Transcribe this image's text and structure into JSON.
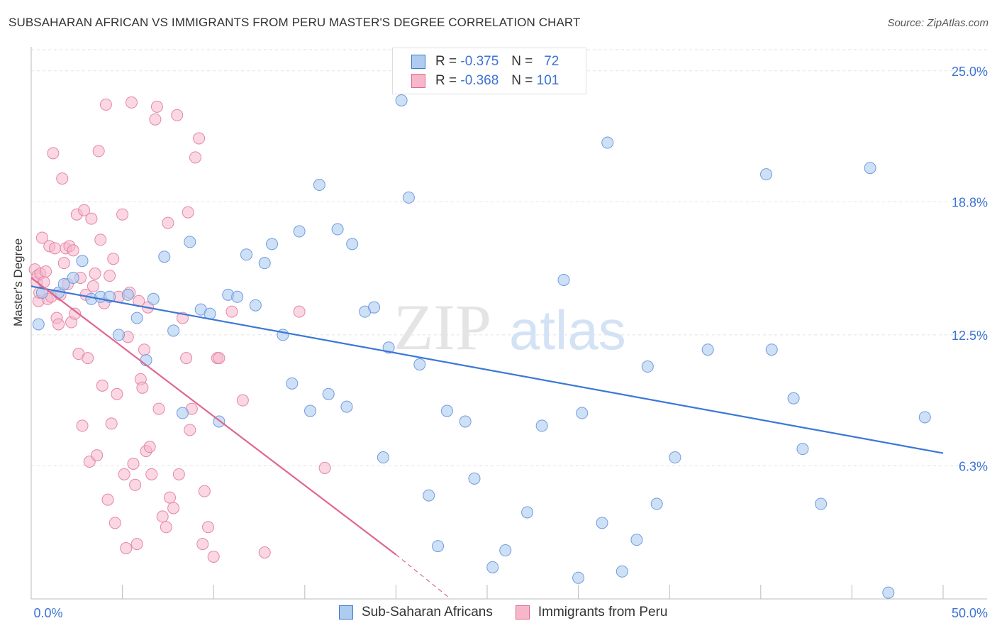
{
  "title": "SUBSAHARAN AFRICAN VS IMMIGRANTS FROM PERU MASTER'S DEGREE CORRELATION CHART",
  "source": "Source: ZipAtlas.com",
  "watermark": {
    "zip": "ZIP",
    "atlas": "atlas"
  },
  "legend_top": [
    {
      "r_label": "R =",
      "r_value": "-0.375",
      "n_label": "N =",
      "n_value": "72"
    },
    {
      "r_label": "R =",
      "r_value": "-0.368",
      "n_label": "N =",
      "n_value": "101"
    }
  ],
  "legend_bottom": [
    "Sub-Saharan Africans",
    "Immigrants from Peru"
  ],
  "chart_data": {
    "type": "scatter",
    "title": "SUBSAHARAN AFRICAN VS IMMIGRANTS FROM PERU MASTER'S DEGREE CORRELATION CHART",
    "xlabel": "",
    "ylabel": "Master's Degree",
    "xlim": [
      0,
      50
    ],
    "ylim": [
      0,
      26
    ],
    "x_tick_labels": [
      "0.0%",
      "50.0%"
    ],
    "y_ticks": [
      6.3,
      12.5,
      18.8,
      25.0
    ],
    "y_tick_labels": [
      "6.3%",
      "12.5%",
      "18.8%",
      "25.0%"
    ],
    "grid": true,
    "colors": {
      "blue": "#3a78d6",
      "blue_fill": "#aecbf0",
      "pink": "#e0668f",
      "pink_fill": "#f6b7cb",
      "tick_text": "#3d73d4"
    },
    "series": [
      {
        "name": "Sub-Saharan Africans",
        "color": "#aecbf0",
        "points": [
          [
            0.4,
            13.0
          ],
          [
            0.6,
            14.5
          ],
          [
            1.5,
            14.5
          ],
          [
            1.8,
            14.9
          ],
          [
            2.3,
            15.2
          ],
          [
            2.8,
            16.0
          ],
          [
            3.3,
            14.2
          ],
          [
            3.8,
            14.3
          ],
          [
            4.3,
            14.3
          ],
          [
            4.8,
            12.5
          ],
          [
            5.3,
            14.4
          ],
          [
            5.8,
            13.3
          ],
          [
            6.3,
            11.3
          ],
          [
            6.7,
            14.2
          ],
          [
            7.3,
            16.2
          ],
          [
            7.8,
            12.7
          ],
          [
            8.3,
            8.8
          ],
          [
            8.7,
            16.9
          ],
          [
            9.3,
            13.7
          ],
          [
            9.8,
            13.5
          ],
          [
            10.3,
            8.4
          ],
          [
            10.8,
            14.4
          ],
          [
            11.3,
            14.3
          ],
          [
            11.8,
            16.3
          ],
          [
            12.3,
            13.9
          ],
          [
            12.8,
            15.9
          ],
          [
            13.2,
            16.8
          ],
          [
            13.8,
            12.5
          ],
          [
            14.3,
            10.2
          ],
          [
            14.7,
            17.4
          ],
          [
            15.3,
            8.9
          ],
          [
            15.8,
            19.6
          ],
          [
            16.3,
            9.7
          ],
          [
            16.8,
            17.5
          ],
          [
            17.3,
            9.1
          ],
          [
            17.6,
            16.8
          ],
          [
            18.3,
            13.6
          ],
          [
            18.8,
            13.8
          ],
          [
            19.3,
            6.7
          ],
          [
            19.6,
            11.9
          ],
          [
            20.3,
            23.6
          ],
          [
            20.7,
            19.0
          ],
          [
            21.3,
            11.1
          ],
          [
            21.8,
            4.9
          ],
          [
            22.3,
            2.5
          ],
          [
            22.8,
            8.9
          ],
          [
            23.8,
            8.4
          ],
          [
            24.3,
            5.7
          ],
          [
            25.3,
            1.5
          ],
          [
            26.0,
            2.3
          ],
          [
            27.2,
            4.1
          ],
          [
            28.0,
            8.2
          ],
          [
            29.2,
            15.1
          ],
          [
            30.0,
            1.0
          ],
          [
            30.2,
            8.8
          ],
          [
            31.3,
            3.6
          ],
          [
            31.6,
            21.6
          ],
          [
            32.4,
            1.3
          ],
          [
            33.2,
            2.8
          ],
          [
            33.8,
            11.0
          ],
          [
            34.3,
            4.5
          ],
          [
            35.3,
            6.7
          ],
          [
            37.1,
            11.8
          ],
          [
            40.3,
            20.1
          ],
          [
            40.6,
            11.8
          ],
          [
            41.8,
            9.5
          ],
          [
            42.3,
            7.1
          ],
          [
            43.3,
            4.5
          ],
          [
            46.0,
            20.4
          ],
          [
            47.0,
            0.3
          ],
          [
            49.0,
            8.6
          ]
        ],
        "point_sizes": {
          "0.4,13.0": "large"
        }
      },
      {
        "name": "Immigrants from Peru",
        "color": "#f6b7cb",
        "points": [
          [
            0.2,
            15.6
          ],
          [
            0.3,
            15.0
          ],
          [
            0.35,
            15.3
          ],
          [
            0.4,
            14.1
          ],
          [
            0.45,
            14.5
          ],
          [
            0.5,
            15.4
          ],
          [
            0.6,
            17.1
          ],
          [
            0.7,
            15.0
          ],
          [
            0.8,
            15.5
          ],
          [
            0.9,
            14.2
          ],
          [
            1.0,
            16.7
          ],
          [
            1.1,
            14.3
          ],
          [
            1.2,
            21.1
          ],
          [
            1.3,
            16.6
          ],
          [
            1.4,
            13.3
          ],
          [
            1.5,
            13.0
          ],
          [
            1.6,
            14.4
          ],
          [
            1.7,
            19.9
          ],
          [
            1.8,
            15.9
          ],
          [
            1.9,
            16.6
          ],
          [
            2.0,
            14.9
          ],
          [
            2.1,
            16.7
          ],
          [
            2.2,
            13.1
          ],
          [
            2.3,
            16.5
          ],
          [
            2.4,
            13.5
          ],
          [
            2.5,
            18.2
          ],
          [
            2.6,
            11.6
          ],
          [
            2.7,
            15.2
          ],
          [
            2.8,
            8.2
          ],
          [
            2.9,
            18.4
          ],
          [
            3.0,
            14.4
          ],
          [
            3.1,
            11.4
          ],
          [
            3.2,
            6.5
          ],
          [
            3.3,
            18.0
          ],
          [
            3.4,
            14.8
          ],
          [
            3.5,
            15.4
          ],
          [
            3.6,
            6.8
          ],
          [
            3.7,
            21.2
          ],
          [
            3.8,
            17.0
          ],
          [
            3.9,
            10.1
          ],
          [
            4.0,
            14.0
          ],
          [
            4.1,
            23.4
          ],
          [
            4.2,
            4.7
          ],
          [
            4.3,
            15.3
          ],
          [
            4.4,
            8.3
          ],
          [
            4.5,
            16.1
          ],
          [
            4.6,
            3.6
          ],
          [
            4.7,
            9.7
          ],
          [
            4.8,
            14.3
          ],
          [
            5.0,
            18.2
          ],
          [
            5.1,
            5.9
          ],
          [
            5.2,
            2.4
          ],
          [
            5.3,
            12.4
          ],
          [
            5.4,
            14.5
          ],
          [
            5.5,
            23.5
          ],
          [
            5.6,
            6.4
          ],
          [
            5.7,
            5.4
          ],
          [
            5.8,
            2.6
          ],
          [
            5.9,
            14.1
          ],
          [
            6.0,
            10.4
          ],
          [
            6.1,
            10.0
          ],
          [
            6.2,
            11.8
          ],
          [
            6.3,
            7.0
          ],
          [
            6.4,
            13.8
          ],
          [
            6.5,
            7.2
          ],
          [
            6.6,
            5.9
          ],
          [
            6.8,
            22.7
          ],
          [
            6.9,
            23.3
          ],
          [
            7.0,
            9.0
          ],
          [
            7.2,
            3.9
          ],
          [
            7.4,
            3.4
          ],
          [
            7.5,
            17.8
          ],
          [
            7.6,
            4.8
          ],
          [
            7.8,
            4.3
          ],
          [
            8.0,
            22.9
          ],
          [
            8.1,
            5.9
          ],
          [
            8.3,
            13.3
          ],
          [
            8.5,
            11.4
          ],
          [
            8.6,
            18.3
          ],
          [
            8.7,
            8.0
          ],
          [
            8.8,
            9.0
          ],
          [
            9.0,
            20.9
          ],
          [
            9.2,
            21.8
          ],
          [
            9.4,
            2.6
          ],
          [
            9.5,
            5.1
          ],
          [
            9.7,
            3.4
          ],
          [
            10.0,
            2.0
          ],
          [
            10.2,
            11.4
          ],
          [
            10.3,
            11.4
          ],
          [
            11.0,
            13.6
          ],
          [
            11.6,
            9.4
          ],
          [
            12.8,
            2.2
          ],
          [
            14.7,
            13.6
          ],
          [
            16.1,
            6.2
          ]
        ]
      }
    ],
    "trendlines": [
      {
        "series": "Sub-Saharan Africans",
        "x": [
          0,
          50
        ],
        "y": [
          14.8,
          6.9
        ]
      },
      {
        "series": "Immigrants from Peru",
        "x": [
          0,
          20
        ],
        "y": [
          15.2,
          2.1
        ],
        "dashed_extension_to": [
          23,
          0
        ]
      }
    ]
  }
}
